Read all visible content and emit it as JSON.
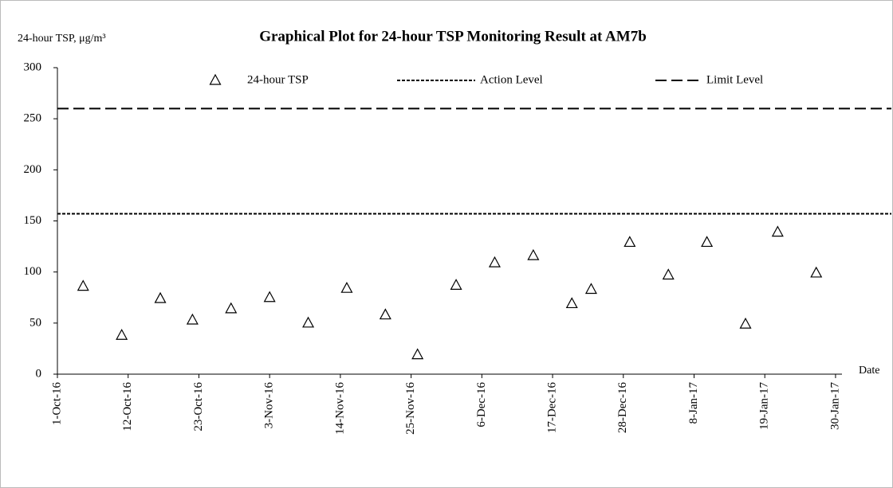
{
  "chart_data": {
    "type": "scatter",
    "title": "Graphical Plot for 24-hour TSP Monitoring Result at AM7b",
    "y_label": "24-hour TSP, μg/m³",
    "x_label": "Date",
    "x": [
      "2016-10-05",
      "2016-10-11",
      "2016-10-17",
      "2016-10-22",
      "2016-10-28",
      "2016-11-03",
      "2016-11-09",
      "2016-11-15",
      "2016-11-21",
      "2016-11-26",
      "2016-12-02",
      "2016-12-08",
      "2016-12-14",
      "2016-12-20",
      "2016-12-23",
      "2016-12-29",
      "2017-01-04",
      "2017-01-10",
      "2017-01-16",
      "2017-01-21",
      "2017-01-27"
    ],
    "series": [
      {
        "name": "24-hour TSP",
        "color": "#000000",
        "marker": "triangle",
        "values": [
          86,
          38,
          74,
          53,
          64,
          75,
          50,
          84,
          58,
          19,
          87,
          109,
          116,
          69,
          83,
          129,
          97,
          129,
          49,
          139,
          99
        ]
      }
    ],
    "reference_lines": [
      {
        "name": "Action Level",
        "value": 157,
        "style": "dotted",
        "color": "#000000"
      },
      {
        "name": "Limit Level",
        "value": 260,
        "style": "dashed",
        "color": "#000000"
      }
    ],
    "xlim": [
      "2016-10-01",
      "2017-01-31"
    ],
    "xticks": [
      {
        "value": "2016-10-01",
        "label": "1-Oct-16"
      },
      {
        "value": "2016-10-12",
        "label": "12-Oct-16"
      },
      {
        "value": "2016-10-23",
        "label": "23-Oct-16"
      },
      {
        "value": "2016-11-03",
        "label": "3-Nov-16"
      },
      {
        "value": "2016-11-14",
        "label": "14-Nov-16"
      },
      {
        "value": "2016-11-25",
        "label": "25-Nov-16"
      },
      {
        "value": "2016-12-06",
        "label": "6-Dec-16"
      },
      {
        "value": "2016-12-17",
        "label": "17-Dec-16"
      },
      {
        "value": "2016-12-28",
        "label": "28-Dec-16"
      },
      {
        "value": "2017-01-08",
        "label": "8-Jan-17"
      },
      {
        "value": "2017-01-19",
        "label": "19-Jan-17"
      },
      {
        "value": "2017-01-30",
        "label": "30-Jan-17"
      }
    ],
    "ylim": [
      0,
      300
    ],
    "yticks": [
      0,
      50,
      100,
      150,
      200,
      250,
      300
    ],
    "grid": false,
    "legend": "top"
  }
}
